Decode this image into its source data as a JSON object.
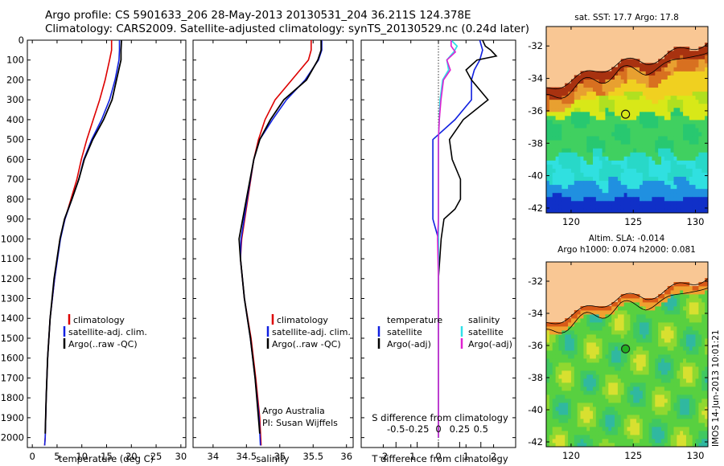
{
  "header": {
    "line1": "Argo profile: CS 5901633_206 28-May-2013 20130531_204 36.211S 124.378E",
    "line2": "Climatology: CARS2009. Satellite-adjusted climatology: synTS_20130529.nc (0.24d later)"
  },
  "depth_ticks": [
    0,
    100,
    200,
    300,
    400,
    500,
    600,
    700,
    800,
    900,
    1000,
    1100,
    1200,
    1300,
    1400,
    1500,
    1600,
    1700,
    1800,
    1900,
    2000
  ],
  "legend_profile": [
    "climatology",
    "satellite-adj. clim.",
    "Argo(..raw -QC)"
  ],
  "colors": {
    "climatology": "#dd0000",
    "satellite": "#1020e0",
    "argo": "#000000",
    "s_sat": "#30e0e8",
    "s_argo": "#e020d0",
    "land": "#f9c794",
    "circle_map1": "#111111",
    "circle_map2": "#222222"
  },
  "chart_data": [
    {
      "type": "line",
      "xlabel": "temperature (deg C)",
      "ylim": [
        2050,
        0
      ],
      "xlim": [
        -1,
        31
      ],
      "xticks": [
        0,
        5,
        10,
        15,
        20,
        25,
        30
      ],
      "legend": [
        "climatology",
        "satellite-adj. clim.",
        "Argo(..raw -QC)"
      ],
      "legend_placement": "lower-center",
      "series": [
        {
          "name": "climatology",
          "depth": [
            0,
            50,
            100,
            200,
            300,
            400,
            500,
            600,
            700,
            800,
            900,
            1000,
            1200,
            1400,
            1600,
            1800,
            2000,
            2040
          ],
          "values": [
            16.0,
            16.0,
            15.6,
            14.7,
            13.6,
            12.3,
            11.0,
            9.9,
            9.0,
            7.8,
            6.6,
            5.6,
            4.5,
            3.6,
            3.1,
            2.8,
            2.6,
            2.5
          ]
        },
        {
          "name": "satellite-adj. clim.",
          "depth": [
            0,
            50,
            100,
            200,
            300,
            400,
            500,
            600,
            700,
            800,
            900,
            1000,
            1200,
            1400,
            1600,
            1800,
            2000,
            2040
          ],
          "values": [
            17.6,
            17.6,
            17.5,
            16.7,
            15.6,
            14.0,
            12.0,
            10.4,
            9.4,
            8.0,
            6.6,
            5.7,
            4.5,
            3.6,
            3.1,
            2.8,
            2.6,
            2.5
          ]
        },
        {
          "name": "Argo(..raw -QC)",
          "depth": [
            0,
            50,
            100,
            200,
            300,
            400,
            500,
            600,
            700,
            800,
            900,
            1000,
            1200,
            1400,
            1600,
            1800,
            1980
          ],
          "values": [
            18.0,
            17.9,
            17.9,
            17.0,
            16.1,
            14.4,
            12.2,
            10.5,
            9.4,
            8.0,
            6.5,
            5.6,
            4.4,
            3.6,
            3.1,
            2.8,
            2.6
          ]
        }
      ]
    },
    {
      "type": "line",
      "xlabel": "salinity",
      "ylim": [
        2050,
        0
      ],
      "xlim": [
        33.7,
        36.1
      ],
      "xticks": [
        34,
        34.5,
        35,
        35.5,
        36
      ],
      "xtick_labels": [
        "34",
        "34.5",
        "35",
        "35.5",
        "36"
      ],
      "legend": [
        "climatology",
        "satellite-adj. clim.",
        "Argo(..raw -QC)"
      ],
      "legend_placement": "lower-center",
      "annotations": [
        "Argo Australia",
        "PI: Susan Wijffels"
      ],
      "series": [
        {
          "name": "climatology",
          "depth": [
            0,
            50,
            100,
            200,
            300,
            400,
            500,
            600,
            800,
            1000,
            1100,
            1300,
            1500,
            1700,
            1900,
            2040
          ],
          "values": [
            35.47,
            35.47,
            35.43,
            35.18,
            34.93,
            34.78,
            34.68,
            34.61,
            34.52,
            34.43,
            34.41,
            34.47,
            34.57,
            34.64,
            34.7,
            34.72
          ]
        },
        {
          "name": "satellite-adj. clim.",
          "depth": [
            0,
            50,
            100,
            200,
            300,
            400,
            500,
            600,
            800,
            1000,
            1100,
            1300,
            1500,
            1700,
            1900,
            2040
          ],
          "values": [
            35.63,
            35.63,
            35.58,
            35.38,
            35.1,
            34.89,
            34.7,
            34.61,
            34.51,
            34.42,
            34.41,
            34.47,
            34.56,
            34.63,
            34.69,
            34.71
          ]
        },
        {
          "name": "Argo(..raw -QC)",
          "depth": [
            0,
            50,
            100,
            200,
            300,
            400,
            500,
            600,
            800,
            1000,
            1100,
            1300,
            1500,
            1700,
            1900,
            1980
          ],
          "values": [
            35.62,
            35.62,
            35.57,
            35.4,
            35.06,
            34.86,
            34.7,
            34.61,
            34.5,
            34.39,
            34.41,
            34.47,
            34.56,
            34.63,
            34.68,
            34.7
          ]
        }
      ]
    },
    {
      "type": "line",
      "xlabel": "T difference from climatology",
      "top_axis_label": "S difference from climatology",
      "ylim": [
        2050,
        0
      ],
      "xlim": [
        -2.8,
        2.8
      ],
      "xticks": [
        -2,
        -1,
        0,
        1,
        2
      ],
      "top_ticks": [
        -0.5,
        -0.25,
        0,
        0.25,
        0.5
      ],
      "top_tick_labels": [
        "-0.5",
        "-0.25",
        "0",
        "0.25",
        "0.5"
      ],
      "legend_groups": [
        {
          "title": "temperature",
          "items": [
            "satellite",
            "Argo(-adj)"
          ]
        },
        {
          "title": "salinity",
          "items": [
            "satellite",
            "Argo(-adj)"
          ]
        }
      ],
      "series": [
        {
          "name": "T satellite",
          "depth": [
            0,
            50,
            100,
            150,
            200,
            300,
            400,
            500,
            600,
            700,
            800,
            900,
            1000,
            1200,
            1500,
            1800,
            2000
          ],
          "values": [
            1.5,
            1.6,
            1.5,
            1.3,
            1.2,
            1.2,
            0.6,
            -0.2,
            -0.2,
            -0.2,
            -0.2,
            -0.2,
            0.0,
            0.0,
            0.0,
            0.0,
            0.0
          ]
        },
        {
          "name": "T Argo(-adj)",
          "depth": [
            0,
            30,
            50,
            80,
            100,
            150,
            200,
            300,
            400,
            500,
            600,
            700,
            800,
            850,
            900,
            1000,
            1200,
            1500,
            1800,
            2000
          ],
          "values": [
            1.6,
            1.7,
            1.9,
            2.1,
            1.4,
            1.0,
            1.2,
            1.8,
            0.9,
            0.4,
            0.5,
            0.8,
            0.8,
            0.6,
            0.2,
            0.1,
            0.0,
            0.0,
            0.0,
            0.0
          ]
        },
        {
          "name": "S satellite",
          "depth": [
            0,
            30,
            60,
            100,
            150,
            200,
            300,
            400,
            500,
            700,
            900,
            1000,
            1200,
            1500,
            1800,
            2000
          ],
          "values": [
            0.15,
            0.22,
            0.18,
            0.1,
            0.12,
            0.05,
            0.02,
            0.01,
            0.0,
            0.0,
            0.0,
            0.0,
            0.0,
            0.0,
            0.0,
            0.0
          ]
        },
        {
          "name": "S Argo(-adj)",
          "depth": [
            0,
            30,
            60,
            100,
            150,
            200,
            300,
            400,
            500,
            700,
            900,
            1000,
            1200,
            1500,
            1800,
            2000
          ],
          "values": [
            0.15,
            0.15,
            0.2,
            0.1,
            0.14,
            0.06,
            0.03,
            0.01,
            0.0,
            0.0,
            0.0,
            -0.01,
            0.0,
            0.0,
            0.0,
            0.0
          ]
        }
      ]
    },
    {
      "type": "heatmap",
      "title": "sat. SST: 17.7 Argo: 17.8",
      "xlim": [
        118,
        131
      ],
      "ylim": [
        -42.3,
        -30.8
      ],
      "xticks": [
        120,
        125,
        130
      ],
      "yticks": [
        -32,
        -34,
        -36,
        -38,
        -40,
        -42
      ],
      "ytick_labels": [
        "-32",
        "-34",
        "-36",
        "-38",
        "-40",
        "-42"
      ],
      "marker": {
        "lon": 124.378,
        "lat": -36.211
      }
    },
    {
      "type": "heatmap",
      "title": "Altim. SLA: -0.014",
      "subtitle": "Argo h1000: 0.074 h2000: 0.081",
      "xlim": [
        118,
        131
      ],
      "ylim": [
        -42.3,
        -30.8
      ],
      "xticks": [
        120,
        125,
        130
      ],
      "yticks": [
        -32,
        -34,
        -36,
        -38,
        -40,
        -42
      ],
      "ytick_labels": [
        "-32",
        "-34",
        "-36",
        "-38",
        "-40",
        "-42"
      ],
      "marker": {
        "lon": 124.378,
        "lat": -36.211
      }
    }
  ],
  "watermark": "IMOS 14-Jun-2013 10:01:21"
}
